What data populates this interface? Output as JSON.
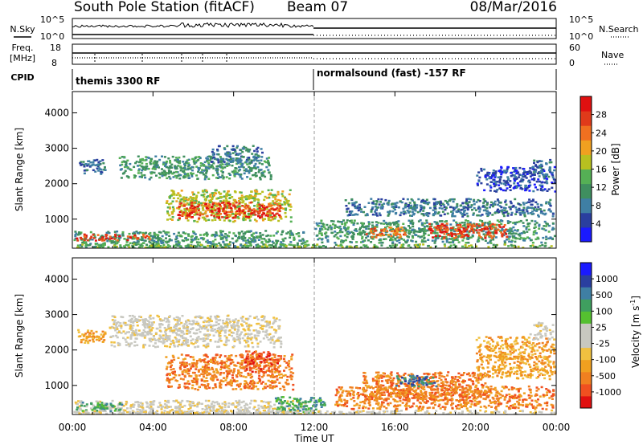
{
  "header": {
    "title": "South Pole Station (fitACF)",
    "beam": "Beam 07",
    "date": "08/Mar/2016"
  },
  "labels": {
    "nsky": "N.Sky",
    "nsearch": "N.Search",
    "freq": "Freq.",
    "freq_unit": "[MHz]",
    "nave": "Nave",
    "cpid": "CPID",
    "nsky_max": "10^5",
    "nsky_min": "10^0",
    "nsearch_max": "10^5",
    "nsearch_min": "10^0",
    "freq_max": "18",
    "freq_min": "8",
    "nave_max": "60",
    "nave_min": "0",
    "x_axis_title": "Time UT",
    "y_axis_title": "Slant Range [km]"
  },
  "cpid_segments": [
    {
      "label": "themis 3300 RF",
      "start_hour": 0,
      "end_hour": 12
    },
    {
      "label": "normalsound (fast) -157 RF",
      "start_hour": 12,
      "end_hour": 24
    }
  ],
  "chart_data": [
    {
      "type": "heatmap",
      "name": "power",
      "xlabel": "Time UT",
      "ylabel": "Slant Range [km]",
      "xlim": [
        0,
        24
      ],
      "ylim": [
        180,
        4600
      ],
      "xticks": [
        "00:00",
        "04:00",
        "08:00",
        "12:00",
        "16:00",
        "20:00",
        "00:00"
      ],
      "xtick_hours": [
        0,
        4,
        8,
        12,
        16,
        20,
        24
      ],
      "yticks": [
        1000,
        2000,
        3000,
        4000
      ],
      "colorbar": {
        "label": "Power [dB]",
        "ticks": [
          "4",
          "8",
          "12",
          "16",
          "20",
          "24",
          "28"
        ],
        "colors": [
          "#1a1aff",
          "#2a3f9f",
          "#3f7fa4",
          "#3f8f5f",
          "#55b055",
          "#b8c020",
          "#f0a020",
          "#f07020",
          "#e03a1a",
          "#e01010"
        ]
      },
      "regions": [
        {
          "x": [
            0.05,
            11.6
          ],
          "y": [
            220,
            700
          ],
          "c": 3
        },
        {
          "x": [
            0.1,
            3.9
          ],
          "y": [
            420,
            600
          ],
          "c": 8
        },
        {
          "x": [
            0.2,
            1.6
          ],
          "y": [
            2300,
            2700
          ],
          "c": 2
        },
        {
          "x": [
            2.3,
            9.8
          ],
          "y": [
            2150,
            2800
          ],
          "c": 3
        },
        {
          "x": [
            6.8,
            9.4
          ],
          "y": [
            2600,
            3100
          ],
          "c": 2
        },
        {
          "x": [
            4.6,
            10.8
          ],
          "y": [
            950,
            1850
          ],
          "c": 5
        },
        {
          "x": [
            5.2,
            10.3
          ],
          "y": [
            1050,
            1500
          ],
          "c": 8
        },
        {
          "x": [
            12.0,
            23.9
          ],
          "y": [
            350,
            1000
          ],
          "c": 3
        },
        {
          "x": [
            14.5,
            16.5
          ],
          "y": [
            500,
            800
          ],
          "c": 7
        },
        {
          "x": [
            17.6,
            21.5
          ],
          "y": [
            480,
            900
          ],
          "c": 8
        },
        {
          "x": [
            13.5,
            23.8
          ],
          "y": [
            1100,
            1600
          ],
          "c": 2
        },
        {
          "x": [
            20.0,
            23.9
          ],
          "y": [
            1800,
            2500
          ],
          "c": 1
        },
        {
          "x": [
            22.8,
            23.8
          ],
          "y": [
            2200,
            2700
          ],
          "c": 2
        },
        {
          "x": [
            0.05,
            23.9
          ],
          "y": [
            200,
            320
          ],
          "c": 4
        }
      ]
    },
    {
      "type": "heatmap",
      "name": "velocity",
      "xlabel": "Time UT",
      "ylabel": "Slant Range [km]",
      "xlim": [
        0,
        24
      ],
      "ylim": [
        180,
        4600
      ],
      "xticks": [
        "00:00",
        "04:00",
        "08:00",
        "12:00",
        "16:00",
        "20:00",
        "00:00"
      ],
      "xtick_hours": [
        0,
        4,
        8,
        12,
        16,
        20,
        24
      ],
      "yticks": [
        1000,
        2000,
        3000,
        4000
      ],
      "colorbar": {
        "label": "Velocity [m s^-1]",
        "ticks": [
          "-1000",
          "-500",
          "-100",
          "-25",
          "25",
          "100",
          "500",
          "1000"
        ],
        "colors": [
          "#e01010",
          "#f05020",
          "#f08020",
          "#f0a020",
          "#f0c040",
          "#c8c8c0",
          "#c8c8c0",
          "#55c030",
          "#3f9f5f",
          "#3f7fa4",
          "#2a3f9f",
          "#1a1aff"
        ]
      },
      "regions": [
        {
          "x": [
            0.05,
            11.6
          ],
          "y": [
            200,
            600
          ],
          "c": 5
        },
        {
          "x": [
            0.1,
            2.5
          ],
          "y": [
            300,
            550
          ],
          "c": 8
        },
        {
          "x": [
            1.8,
            10.3
          ],
          "y": [
            2100,
            3000
          ],
          "c": 5
        },
        {
          "x": [
            0.2,
            1.6
          ],
          "y": [
            2200,
            2600
          ],
          "c": 3
        },
        {
          "x": [
            4.6,
            10.9
          ],
          "y": [
            900,
            1900
          ],
          "c": 2
        },
        {
          "x": [
            8.5,
            10.2
          ],
          "y": [
            1400,
            2000
          ],
          "c": 1
        },
        {
          "x": [
            10.0,
            12.5
          ],
          "y": [
            200,
            700
          ],
          "c": 8
        },
        {
          "x": [
            13.0,
            23.9
          ],
          "y": [
            350,
            1000
          ],
          "c": 2
        },
        {
          "x": [
            14.3,
            20.5
          ],
          "y": [
            600,
            1400
          ],
          "c": 2
        },
        {
          "x": [
            16.0,
            18.0
          ],
          "y": [
            1000,
            1300
          ],
          "c": 9
        },
        {
          "x": [
            20.0,
            23.9
          ],
          "y": [
            1200,
            2400
          ],
          "c": 3
        },
        {
          "x": [
            22.6,
            23.8
          ],
          "y": [
            2300,
            2800
          ],
          "c": 5
        },
        {
          "x": [
            0.05,
            23.9
          ],
          "y": [
            200,
            320
          ],
          "c": 5
        }
      ]
    }
  ]
}
